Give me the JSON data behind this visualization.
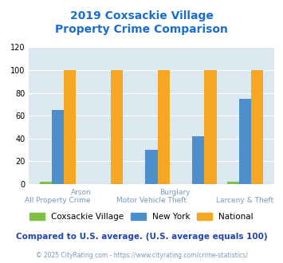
{
  "title_line1": "2019 Coxsackie Village",
  "title_line2": "Property Crime Comparison",
  "title_color": "#1a6fcc",
  "groups": [
    "All Property Crime",
    "Arson",
    "Motor Vehicle Theft",
    "Burglary",
    "Larceny & Theft"
  ],
  "coxsackie": [
    2,
    0,
    0,
    0,
    2
  ],
  "new_york": [
    65,
    0,
    30,
    42,
    75
  ],
  "national": [
    100,
    100,
    100,
    100,
    100
  ],
  "coxsackie_color": "#7cc242",
  "new_york_color": "#4d8fcc",
  "national_color": "#f5a623",
  "bg_color": "#dce9f0",
  "ylim": [
    0,
    120
  ],
  "yticks": [
    0,
    20,
    40,
    60,
    80,
    100,
    120
  ],
  "legend_labels": [
    "Coxsackie Village",
    "New York",
    "National"
  ],
  "footer_text1": "Compared to U.S. average. (U.S. average equals 100)",
  "footer_text2": "© 2025 CityRating.com - https://www.cityrating.com/crime-statistics/",
  "footer_color1": "#2244aa",
  "footer_color2": "#7799bb",
  "label_color": "#7799bb"
}
